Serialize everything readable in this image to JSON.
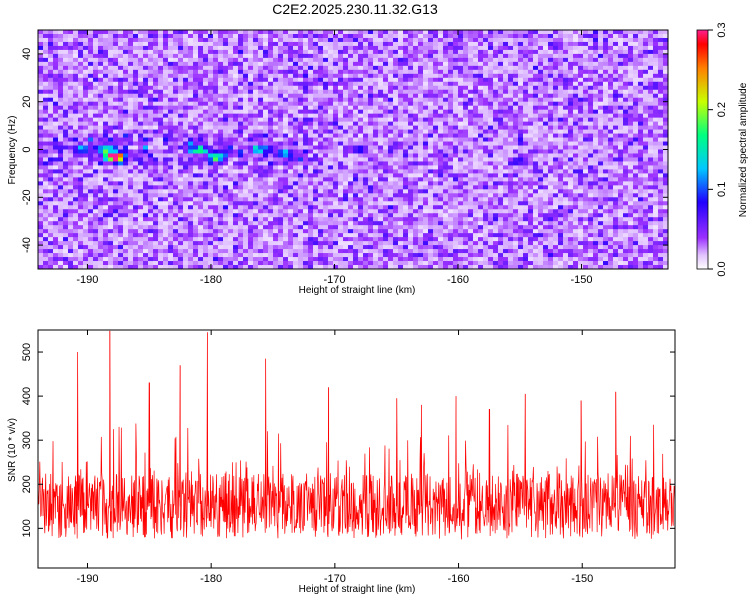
{
  "title": "C2E2.2025.230.11.32.G13",
  "chart_data": [
    {
      "type": "heatmap",
      "xlabel": "Height of straight line (km)",
      "ylabel": "Frequency (Hz)",
      "xlim": [
        -194,
        -143
      ],
      "ylim": [
        -50,
        50
      ],
      "xticks": [
        -190,
        -180,
        -170,
        -160,
        -150
      ],
      "yticks": [
        -40,
        -20,
        0,
        20,
        40
      ],
      "colorbar": {
        "label": "Normalized spectral amplitude",
        "range": [
          0,
          0.3
        ],
        "ticks": [
          "0.0",
          "0.1",
          "0.2",
          "0.3"
        ],
        "colors": [
          "#ffffff",
          "#9b30ff",
          "#2200ff",
          "#00c8ff",
          "#00ff80",
          "#c8ff00",
          "#ff8000",
          "#ff0000",
          "#ff2090"
        ]
      },
      "typical_amplitude": 0.05,
      "hotspots": [
        {
          "x": -187.8,
          "y": -3,
          "amplitude": 0.28
        },
        {
          "x": -188.5,
          "y": 0,
          "amplitude": 0.15
        },
        {
          "x": -181,
          "y": 0,
          "amplitude": 0.15
        },
        {
          "x": -179.5,
          "y": -3,
          "amplitude": 0.15
        },
        {
          "x": -176,
          "y": 0,
          "amplitude": 0.12
        },
        {
          "x": -174,
          "y": -2,
          "amplitude": 0.11
        },
        {
          "x": -190.5,
          "y": 0,
          "amplitude": 0.1
        },
        {
          "x": -168,
          "y": 0,
          "amplitude": 0.1
        },
        {
          "x": -155,
          "y": -5,
          "amplitude": 0.1
        }
      ]
    },
    {
      "type": "line",
      "xlabel": "Height of straight line (km)",
      "ylabel": "SNR (10 * v/v)",
      "xlim": [
        -194,
        -142.5
      ],
      "ylim": [
        10,
        550
      ],
      "xticks": [
        -190,
        -180,
        -170,
        -160,
        -150
      ],
      "yticks": [
        100,
        200,
        300,
        400,
        500
      ],
      "color": "#ff0000",
      "baseline_mean": 150,
      "peaks": [
        {
          "x": -188.2,
          "y": 548
        },
        {
          "x": -180.3,
          "y": 545
        },
        {
          "x": -190.8,
          "y": 500
        },
        {
          "x": -175.6,
          "y": 485
        },
        {
          "x": -182.5,
          "y": 470
        },
        {
          "x": -185.0,
          "y": 430
        },
        {
          "x": -170.5,
          "y": 420
        },
        {
          "x": -165.0,
          "y": 395
        },
        {
          "x": -160.2,
          "y": 400
        },
        {
          "x": -154.6,
          "y": 405
        },
        {
          "x": -147.3,
          "y": 410
        },
        {
          "x": -150.1,
          "y": 390
        },
        {
          "x": -163.0,
          "y": 380
        },
        {
          "x": -157.5,
          "y": 370
        }
      ]
    }
  ]
}
